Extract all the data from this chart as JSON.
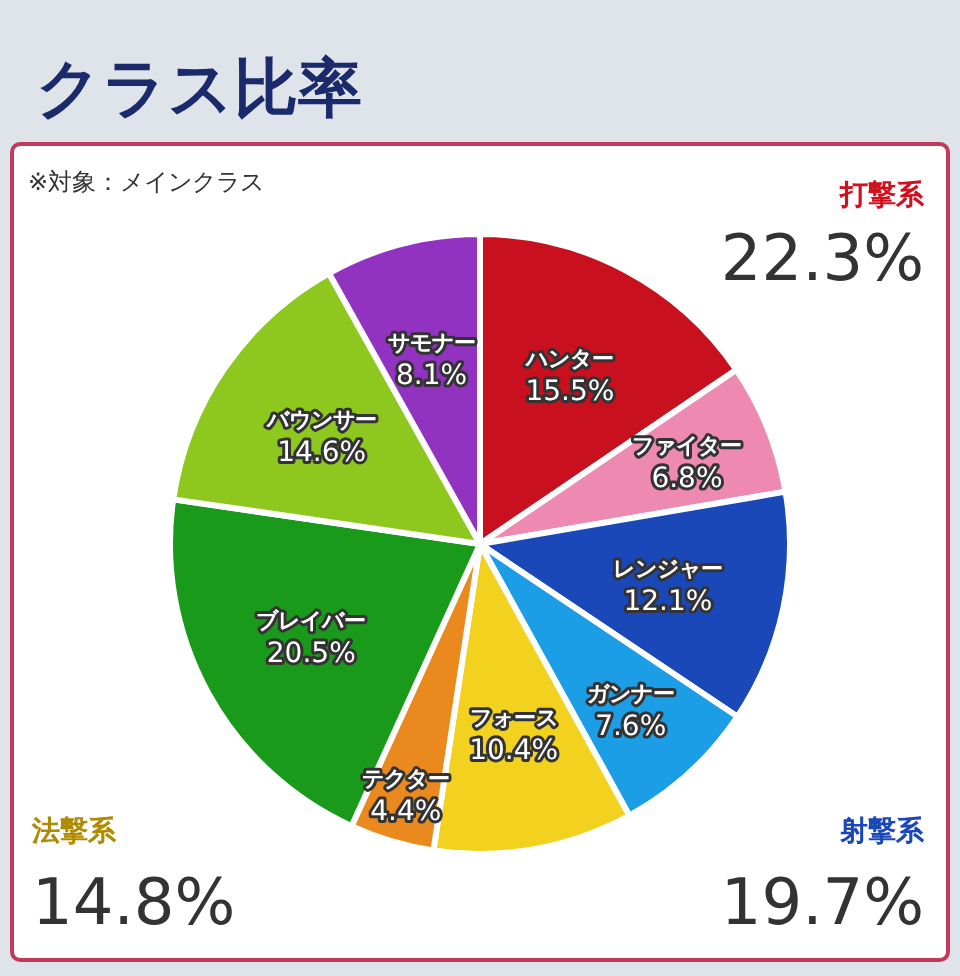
{
  "chart_data": {
    "type": "pie",
    "title": "クラス比率",
    "subtitle": "※対象：メインクラス",
    "categories": [
      "ハンター",
      "ファイター",
      "レンジャー",
      "ガンナー",
      "フォース",
      "テクター",
      "ブレイバー",
      "バウンサー",
      "サモナー"
    ],
    "values": [
      15.5,
      6.8,
      12.1,
      7.6,
      10.4,
      4.4,
      20.5,
      14.6,
      8.1
    ],
    "value_labels": [
      "15.5%",
      "6.8%",
      "12.1%",
      "7.6%",
      "10.4%",
      "4.4%",
      "20.5%",
      "14.6%",
      "8.1%"
    ],
    "colors": [
      "#c8101e",
      "#ee8ab2",
      "#1a48b8",
      "#1c9ee6",
      "#f2d21e",
      "#ea8a1e",
      "#1a9a1a",
      "#8ec81e",
      "#9232c0"
    ],
    "annotations": [
      "打撃系",
      "22.3%",
      "射撃系",
      "19.7%",
      "法撃系",
      "14.8%"
    ]
  }
}
